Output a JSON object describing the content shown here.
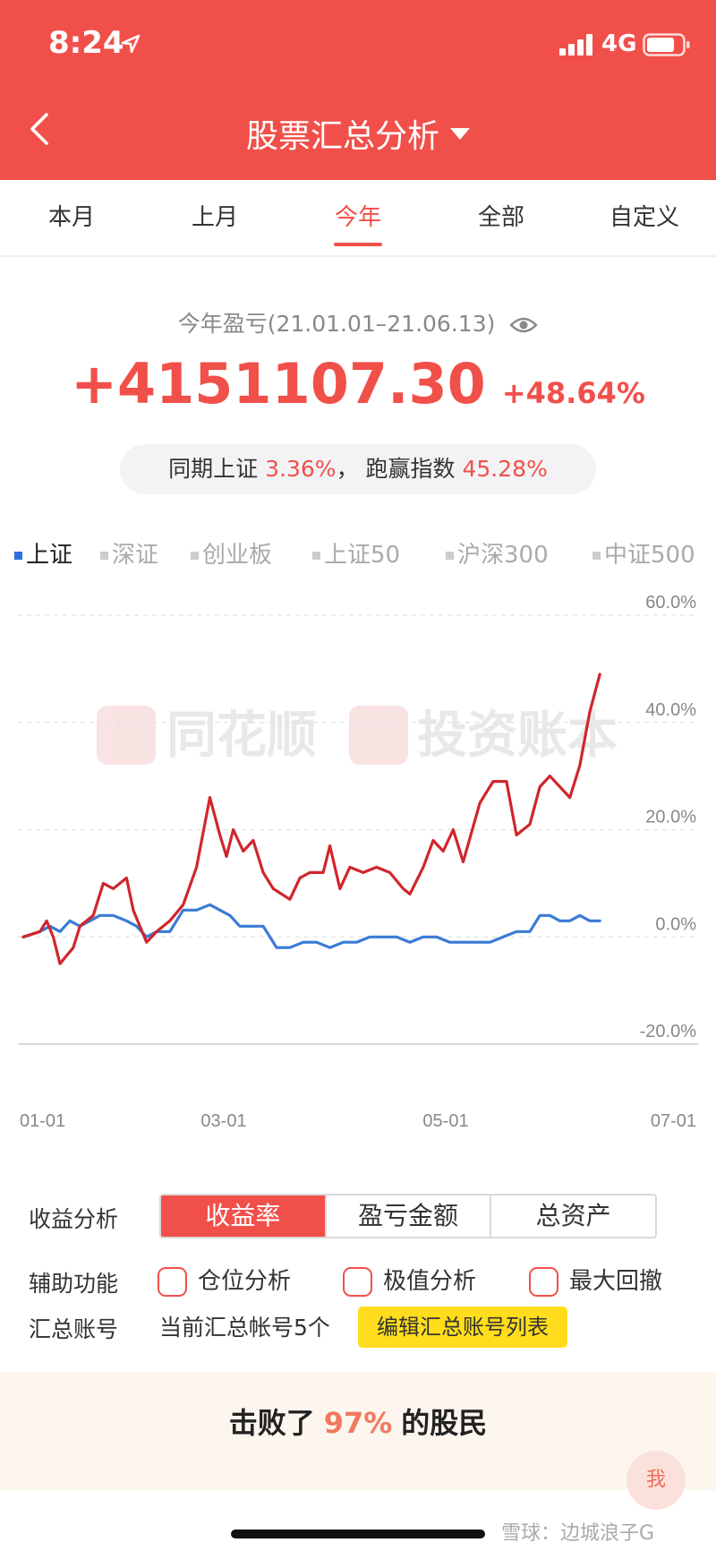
{
  "status": {
    "time": "8:24",
    "network": "4G"
  },
  "header": {
    "title": "股票汇总分析",
    "back_icon": "chevron-left-icon",
    "title_caret_icon": "caret-down-icon"
  },
  "tabs": [
    {
      "label": "本月"
    },
    {
      "label": "上月"
    },
    {
      "label": "今年",
      "active": true
    },
    {
      "label": "全部"
    },
    {
      "label": "自定义"
    }
  ],
  "summary": {
    "period_label": "今年盈亏(21.01.01–21.06.13)",
    "profit": "+4151107.30",
    "profit_pct": "+48.64%",
    "compare_prefix": "同期上证",
    "compare_value": "3.36%",
    "compare_sep": "，",
    "beat_label": "跑赢指数",
    "beat_value": "45.28%"
  },
  "index_legend": [
    {
      "label": "上证",
      "active": true
    },
    {
      "label": "深证"
    },
    {
      "label": "创业板"
    },
    {
      "label": "上证50"
    },
    {
      "label": "沪深300"
    },
    {
      "label": "中证500"
    }
  ],
  "chart_data": {
    "type": "line",
    "x_ticks": [
      "01-01",
      "03-01",
      "05-01",
      "07-01"
    ],
    "y_ticks": [
      "60.0%",
      "40.0%",
      "20.0%",
      "0.0%",
      "-20.0%"
    ],
    "ylim": [
      -20,
      60
    ],
    "x_range": [
      "2021-01-01",
      "2021-07-01"
    ],
    "grid": true,
    "watermark": {
      "left": "同花顺",
      "right": "投资账本"
    },
    "series": [
      {
        "color": "#d0262c",
        "points": [
          [
            "2021-01-01",
            0
          ],
          [
            "2021-01-06",
            1
          ],
          [
            "2021-01-08",
            3
          ],
          [
            "2021-01-10",
            0
          ],
          [
            "2021-01-12",
            -5
          ],
          [
            "2021-01-16",
            -2
          ],
          [
            "2021-01-18",
            2
          ],
          [
            "2021-01-22",
            4
          ],
          [
            "2021-01-25",
            10
          ],
          [
            "2021-01-28",
            9
          ],
          [
            "2021-02-01",
            11
          ],
          [
            "2021-02-03",
            5
          ],
          [
            "2021-02-05",
            2
          ],
          [
            "2021-02-07",
            -1
          ],
          [
            "2021-02-10",
            1
          ],
          [
            "2021-02-14",
            3
          ],
          [
            "2021-02-18",
            6
          ],
          [
            "2021-02-22",
            13
          ],
          [
            "2021-02-26",
            26
          ],
          [
            "2021-03-01",
            19
          ],
          [
            "2021-03-03",
            15
          ],
          [
            "2021-03-05",
            20
          ],
          [
            "2021-03-08",
            16
          ],
          [
            "2021-03-11",
            18
          ],
          [
            "2021-03-14",
            12
          ],
          [
            "2021-03-17",
            9
          ],
          [
            "2021-03-22",
            7
          ],
          [
            "2021-03-25",
            11
          ],
          [
            "2021-03-28",
            12
          ],
          [
            "2021-04-01",
            12
          ],
          [
            "2021-04-03",
            17
          ],
          [
            "2021-04-06",
            9
          ],
          [
            "2021-04-09",
            13
          ],
          [
            "2021-04-13",
            12
          ],
          [
            "2021-04-17",
            13
          ],
          [
            "2021-04-21",
            12
          ],
          [
            "2021-04-25",
            9
          ],
          [
            "2021-04-27",
            8
          ],
          [
            "2021-05-01",
            13
          ],
          [
            "2021-05-04",
            18
          ],
          [
            "2021-05-07",
            16
          ],
          [
            "2021-05-10",
            20
          ],
          [
            "2021-05-13",
            14
          ],
          [
            "2021-05-18",
            25
          ],
          [
            "2021-05-22",
            29
          ],
          [
            "2021-05-26",
            29
          ],
          [
            "2021-05-29",
            19
          ],
          [
            "2021-06-02",
            21
          ],
          [
            "2021-06-05",
            28
          ],
          [
            "2021-06-08",
            30
          ],
          [
            "2021-06-11",
            28
          ],
          [
            "2021-06-14",
            26
          ],
          [
            "2021-06-17",
            32
          ],
          [
            "2021-06-20",
            42
          ],
          [
            "2021-06-23",
            49
          ]
        ]
      },
      {
        "color": "#3a7bd5",
        "points": [
          [
            "2021-01-01",
            0
          ],
          [
            "2021-01-06",
            1
          ],
          [
            "2021-01-09",
            2
          ],
          [
            "2021-01-12",
            1
          ],
          [
            "2021-01-15",
            3
          ],
          [
            "2021-01-18",
            2
          ],
          [
            "2021-01-21",
            3
          ],
          [
            "2021-01-24",
            4
          ],
          [
            "2021-01-28",
            4
          ],
          [
            "2021-02-01",
            3
          ],
          [
            "2021-02-04",
            2
          ],
          [
            "2021-02-07",
            0
          ],
          [
            "2021-02-10",
            1
          ],
          [
            "2021-02-14",
            1
          ],
          [
            "2021-02-18",
            5
          ],
          [
            "2021-02-22",
            5
          ],
          [
            "2021-02-26",
            6
          ],
          [
            "2021-03-01",
            5
          ],
          [
            "2021-03-04",
            4
          ],
          [
            "2021-03-07",
            2
          ],
          [
            "2021-03-10",
            2
          ],
          [
            "2021-03-14",
            2
          ],
          [
            "2021-03-18",
            -2
          ],
          [
            "2021-03-22",
            -2
          ],
          [
            "2021-03-26",
            -1
          ],
          [
            "2021-03-30",
            -1
          ],
          [
            "2021-04-03",
            -2
          ],
          [
            "2021-04-07",
            -1
          ],
          [
            "2021-04-11",
            -1
          ],
          [
            "2021-04-15",
            0
          ],
          [
            "2021-04-19",
            0
          ],
          [
            "2021-04-23",
            0
          ],
          [
            "2021-04-27",
            -1
          ],
          [
            "2021-05-01",
            0
          ],
          [
            "2021-05-05",
            0
          ],
          [
            "2021-05-09",
            -1
          ],
          [
            "2021-05-13",
            -1
          ],
          [
            "2021-05-17",
            -1
          ],
          [
            "2021-05-21",
            -1
          ],
          [
            "2021-05-25",
            0
          ],
          [
            "2021-05-29",
            1
          ],
          [
            "2021-06-02",
            1
          ],
          [
            "2021-06-05",
            4
          ],
          [
            "2021-06-08",
            4
          ],
          [
            "2021-06-11",
            3
          ],
          [
            "2021-06-14",
            3
          ],
          [
            "2021-06-17",
            4
          ],
          [
            "2021-06-20",
            3
          ],
          [
            "2021-06-23",
            3
          ]
        ]
      }
    ]
  },
  "controls": {
    "analysis_label": "收益分析",
    "analysis_options": [
      {
        "label": "收益率",
        "active": true
      },
      {
        "label": "盈亏金额"
      },
      {
        "label": "总资产"
      }
    ],
    "aux_label": "辅助功能",
    "aux_options": [
      {
        "label": "仓位分析"
      },
      {
        "label": "极值分析"
      },
      {
        "label": "最大回撤"
      }
    ],
    "account_label": "汇总账号",
    "account_count": "当前汇总帐号5个",
    "edit_button": "编辑汇总账号列表"
  },
  "beat": {
    "prefix": "击败了",
    "pct": "97%",
    "suffix": "的股民"
  },
  "me_button": "我",
  "watermark_bottom": "雪球：边城浪子G",
  "colors": {
    "brand": "#f1504a",
    "accent_yellow": "#ffdd1c",
    "index_blue": "#2f6fe0"
  }
}
